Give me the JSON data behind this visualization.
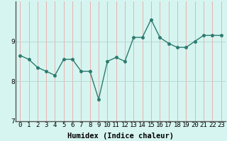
{
  "x": [
    0,
    1,
    2,
    3,
    4,
    5,
    6,
    7,
    8,
    9,
    10,
    11,
    12,
    13,
    14,
    15,
    16,
    17,
    18,
    19,
    20,
    21,
    22,
    23
  ],
  "y": [
    8.65,
    8.55,
    8.35,
    8.25,
    8.15,
    8.55,
    8.55,
    8.25,
    8.25,
    7.55,
    8.5,
    8.6,
    8.5,
    9.1,
    9.1,
    9.55,
    9.1,
    8.95,
    8.85,
    8.85,
    9.0,
    9.15,
    9.15,
    9.15
  ],
  "line_color": "#2d7a6e",
  "marker": "o",
  "marker_size": 2.5,
  "bg_color": "#d6f5f0",
  "grid_color_v": "#e8b0b0",
  "grid_color_h": "#b8d8d4",
  "xlabel": "Humidex (Indice chaleur)",
  "ylabel": "",
  "xlim": [
    -0.5,
    23.5
  ],
  "ylim": [
    7.0,
    10.0
  ],
  "yticks": [
    7,
    8,
    9
  ],
  "xtick_labels": [
    "0",
    "1",
    "2",
    "3",
    "4",
    "5",
    "6",
    "7",
    "8",
    "9",
    "10",
    "11",
    "12",
    "13",
    "14",
    "15",
    "16",
    "17",
    "18",
    "19",
    "20",
    "21",
    "22",
    "23"
  ],
  "xlabel_fontsize": 7.5,
  "tick_fontsize": 6.5,
  "line_width": 1.0,
  "spine_color": "#555555"
}
